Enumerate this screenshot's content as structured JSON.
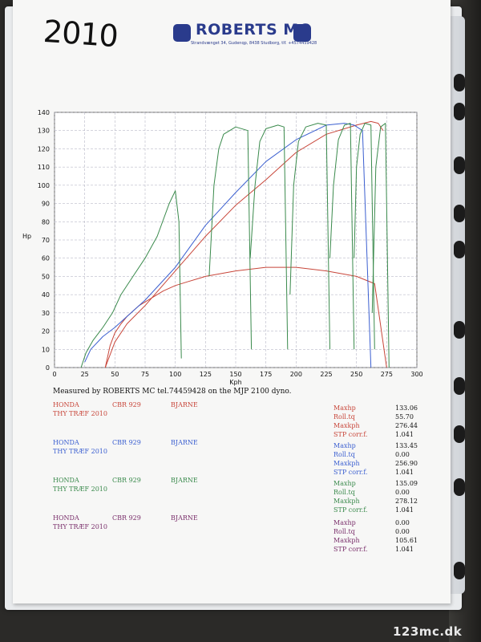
{
  "handwriting": "2010",
  "brand": {
    "name": "ROBERTS MC",
    "address": "Strandvænget 34, Gudenqp, 8438 Studborg, tlf. +4574459428"
  },
  "chart_data": {
    "type": "line",
    "xlabel": "Kph",
    "ylabel": "Hp",
    "xlim": [
      0,
      300
    ],
    "ylim": [
      0,
      140
    ],
    "xticks": [
      0,
      25,
      50,
      75,
      100,
      125,
      150,
      175,
      200,
      225,
      250,
      275,
      300
    ],
    "yticks": [
      0,
      10,
      20,
      30,
      40,
      50,
      60,
      70,
      80,
      90,
      100,
      110,
      120,
      130,
      140
    ],
    "grid": true,
    "series": [
      {
        "color": "#c8463a",
        "x": [
          42,
          46,
          50,
          55,
          60,
          70,
          80,
          90,
          100,
          110,
          125,
          150,
          175,
          200,
          225,
          250,
          265,
          275
        ],
        "values": [
          0,
          12,
          19,
          24,
          28,
          34,
          38,
          42,
          45,
          47,
          50,
          53,
          55,
          55,
          53,
          50,
          46,
          0
        ]
      },
      {
        "color": "#c8463a",
        "x": [
          42,
          50,
          60,
          75,
          100,
          125,
          150,
          175,
          200,
          225,
          250,
          262,
          268,
          272
        ],
        "values": [
          0,
          14,
          24,
          34,
          53,
          72,
          89,
          103,
          118,
          128,
          133,
          135,
          134,
          130
        ]
      },
      {
        "color": "#3b5fd0",
        "x": [
          25,
          30,
          40,
          50,
          60,
          75,
          100,
          125,
          150,
          175,
          200,
          225,
          240,
          248,
          255,
          262
        ],
        "values": [
          3,
          10,
          17,
          22,
          28,
          37,
          55,
          78,
          96,
          113,
          125,
          133,
          134,
          133,
          130,
          0
        ]
      },
      {
        "color": "#3a8a4c",
        "x": [
          22,
          26,
          32,
          40,
          48,
          55,
          65,
          75,
          85,
          95,
          100,
          103,
          105
        ],
        "values": [
          0,
          8,
          15,
          22,
          30,
          40,
          50,
          60,
          72,
          90,
          97,
          80,
          5
        ]
      },
      {
        "color": "#3a8a4c",
        "x": [
          128,
          132,
          136,
          140,
          150,
          160,
          163
        ],
        "values": [
          50,
          100,
          120,
          128,
          132,
          130,
          10
        ]
      },
      {
        "color": "#3a8a4c",
        "x": [
          162,
          166,
          170,
          175,
          185,
          190,
          193
        ],
        "values": [
          60,
          100,
          124,
          131,
          133,
          132,
          10
        ]
      },
      {
        "color": "#3a8a4c",
        "x": [
          195,
          198,
          202,
          208,
          218,
          225,
          228
        ],
        "values": [
          40,
          100,
          124,
          132,
          134,
          133,
          10
        ]
      },
      {
        "color": "#3a8a4c",
        "x": [
          228,
          231,
          235,
          240,
          245,
          248
        ],
        "values": [
          60,
          100,
          125,
          133,
          134,
          10
        ]
      },
      {
        "color": "#3a8a4c",
        "x": [
          248,
          250,
          253,
          257,
          262,
          265
        ],
        "values": [
          60,
          110,
          128,
          134,
          133,
          10
        ]
      },
      {
        "color": "#3a8a4c",
        "x": [
          263,
          266,
          270,
          274,
          277
        ],
        "values": [
          30,
          110,
          132,
          134,
          0
        ]
      }
    ]
  },
  "measured": "Measured by ROBERTS MC tel.74459428 on the MJP 2100 dyno.",
  "runs": [
    {
      "color": "#c8463a",
      "make": "HONDA",
      "event": "THY TRÆF 2010",
      "model": "CBR 929",
      "rider": "BJARNE",
      "labels": [
        "Maxhp",
        "Roll.tq",
        "Maxkph",
        "STP corr.f."
      ],
      "values": [
        "133.06",
        "55.70",
        "276.44",
        "1.041"
      ]
    },
    {
      "color": "#3b5fd0",
      "make": "HONDA",
      "event": "THY TRÆF 2010",
      "model": "CBR 929",
      "rider": "BJARNE",
      "labels": [
        "Maxhp",
        "Roll.tq",
        "Maxkph",
        "STP corr.f."
      ],
      "values": [
        "133.45",
        "0.00",
        "256.90",
        "1.041"
      ]
    },
    {
      "color": "#3a8a4c",
      "make": "HONDA",
      "event": "THY TRÆF 2010",
      "model": "CBR 929",
      "rider": "BJARNE",
      "labels": [
        "Maxhp",
        "Roll.tq",
        "Maxkph",
        "STP corr.f."
      ],
      "values": [
        "135.09",
        "0.00",
        "278.12",
        "1.041"
      ]
    },
    {
      "color": "#7a2f6b",
      "make": "HONDA",
      "event": "THY TRÆF 2010",
      "model": "CBR 929",
      "rider": "BJARNE",
      "labels": [
        "Maxhp",
        "Roll.tq",
        "Maxkph",
        "STP corr.f."
      ],
      "values": [
        "0.00",
        "0.00",
        "105.61",
        "1.041"
      ]
    }
  ],
  "watermark": "123mc.dk"
}
